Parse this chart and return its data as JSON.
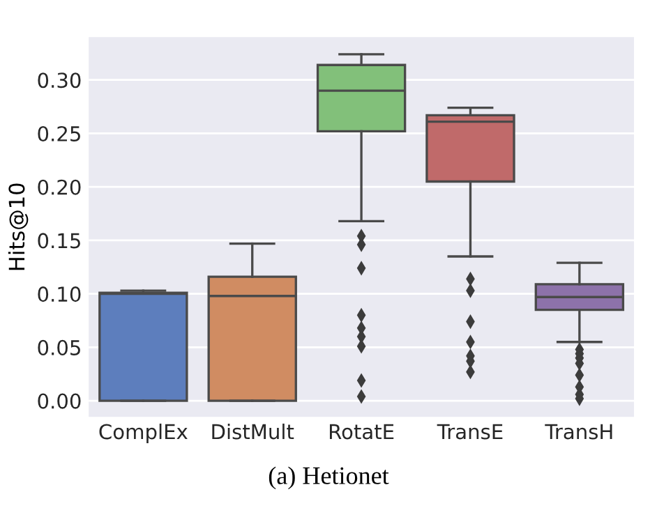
{
  "chart_data": {
    "type": "box",
    "ylabel": "Hits@10",
    "categories": [
      "ComplEx",
      "DistMult",
      "RotatE",
      "TransE",
      "TransH"
    ],
    "colors": [
      "#5d7ebd",
      "#d08c62",
      "#82c07a",
      "#c06a6a",
      "#8d72aa"
    ],
    "boxes": [
      {
        "low": 0.0,
        "q1": 0.0,
        "median": 0.1,
        "q3": 0.101,
        "high": 0.103
      },
      {
        "low": 0.0,
        "q1": 0.0,
        "median": 0.098,
        "q3": 0.116,
        "high": 0.147
      },
      {
        "low": 0.168,
        "q1": 0.252,
        "median": 0.29,
        "q3": 0.314,
        "high": 0.324,
        "outliers": [
          0.154,
          0.146,
          0.124,
          0.08,
          0.068,
          0.06,
          0.051,
          0.019,
          0.004
        ]
      },
      {
        "low": 0.135,
        "q1": 0.205,
        "median": 0.261,
        "q3": 0.267,
        "high": 0.274,
        "outliers": [
          0.114,
          0.103,
          0.074,
          0.055,
          0.042,
          0.037,
          0.027
        ]
      },
      {
        "low": 0.055,
        "q1": 0.085,
        "median": 0.097,
        "q3": 0.109,
        "high": 0.129,
        "outliers": [
          0.048,
          0.044,
          0.04,
          0.035,
          0.024,
          0.013,
          0.006,
          0.002
        ]
      }
    ],
    "ylim": [
      -0.015,
      0.34
    ],
    "yticks": [
      {
        "value": 0,
        "label": "0.00"
      },
      {
        "value": 0.05,
        "label": "0.05"
      },
      {
        "value": 0.1,
        "label": "0.10"
      },
      {
        "value": 0.15,
        "label": "0.15"
      },
      {
        "value": 0.2,
        "label": "0.20"
      },
      {
        "value": 0.25,
        "label": "0.25"
      },
      {
        "value": 0.3,
        "label": "0.30"
      }
    ],
    "grid": "y",
    "annotations": [
      "(a) Hetionet"
    ]
  }
}
